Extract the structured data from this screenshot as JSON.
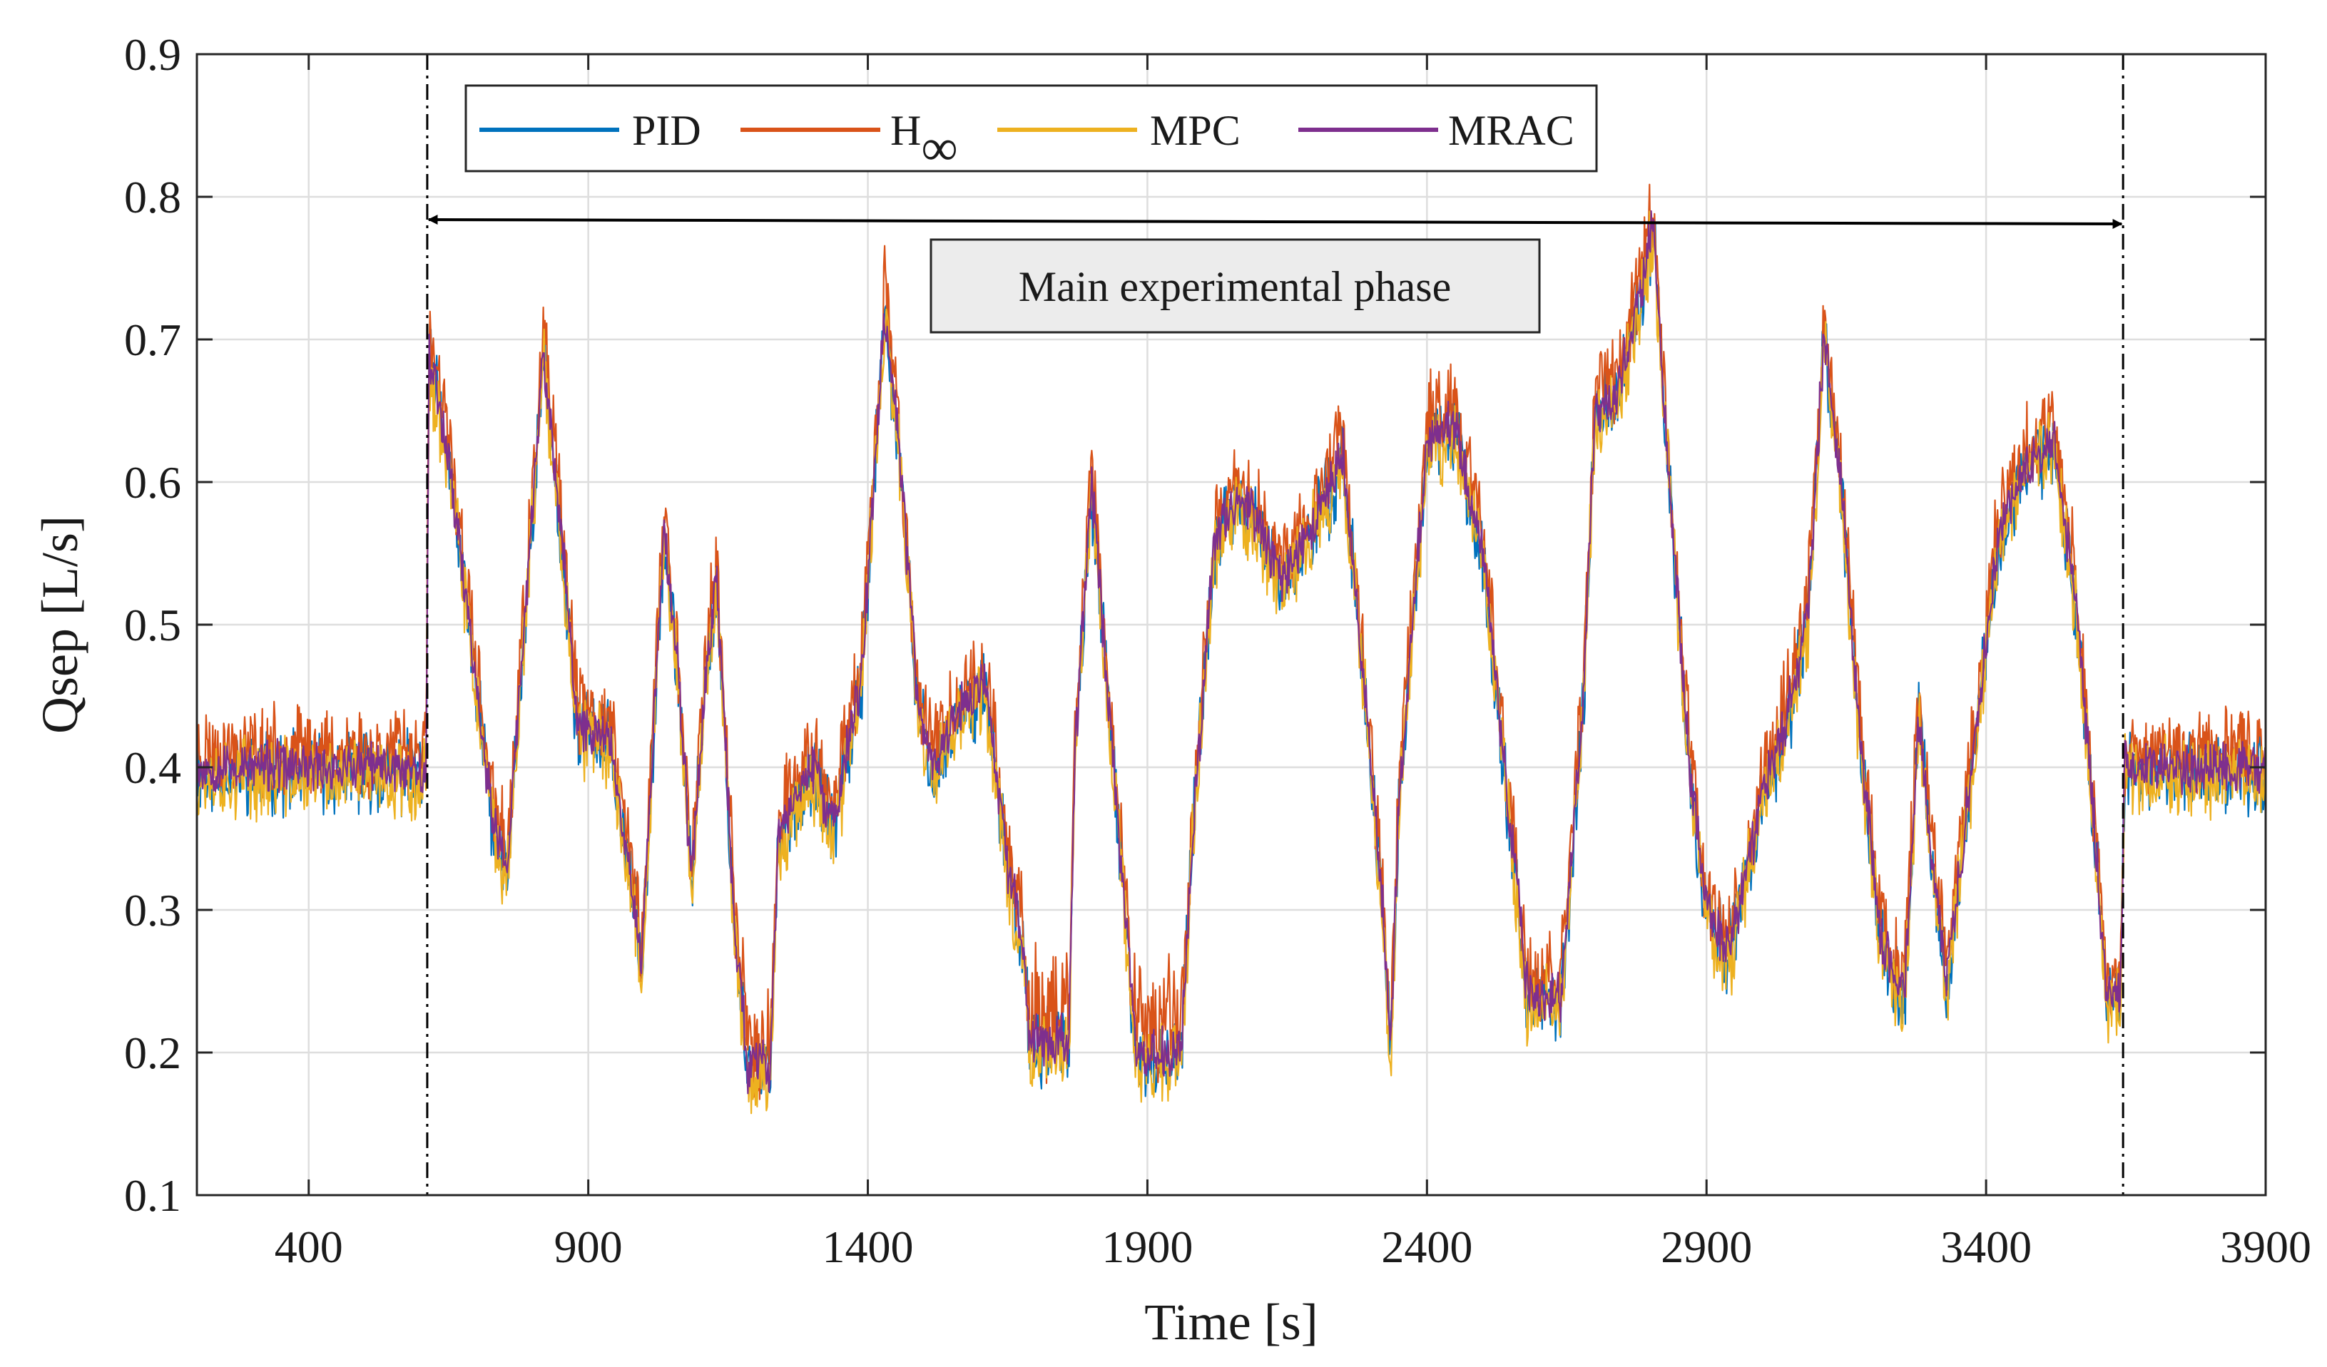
{
  "chart_data": {
    "type": "line",
    "title": "",
    "xlabel": "Time [s]",
    "ylabel": "Qsep [L/s]",
    "xlim": [
      200,
      3900
    ],
    "ylim": [
      0.1,
      0.9
    ],
    "xticks": [
      400,
      900,
      1400,
      1900,
      2400,
      2900,
      3400,
      3900
    ],
    "yticks": [
      0.1,
      0.2,
      0.3,
      0.4,
      0.5,
      0.6,
      0.7,
      0.8,
      0.9
    ],
    "xtick_labels": [
      "400",
      "900",
      "1400",
      "1900",
      "2400",
      "2900",
      "3400",
      "3900"
    ],
    "ytick_labels": [
      "0.1",
      "0.2",
      "0.3",
      "0.4",
      "0.5",
      "0.6",
      "0.7",
      "0.8",
      "0.9"
    ],
    "grid": true,
    "legend_position": "top-left",
    "phase_bounds": [
      612,
      3645
    ],
    "annotation": "Main experimental phase",
    "profile": [
      [
        200,
        0.4
      ],
      [
        610,
        0.4
      ],
      [
        615,
        0.69
      ],
      [
        650,
        0.62
      ],
      [
        730,
        0.36
      ],
      [
        755,
        0.33
      ],
      [
        820,
        0.69
      ],
      [
        855,
        0.55
      ],
      [
        880,
        0.43
      ],
      [
        940,
        0.42
      ],
      [
        985,
        0.3
      ],
      [
        995,
        0.26
      ],
      [
        1035,
        0.57
      ],
      [
        1060,
        0.47
      ],
      [
        1085,
        0.32
      ],
      [
        1110,
        0.47
      ],
      [
        1130,
        0.53
      ],
      [
        1160,
        0.3
      ],
      [
        1185,
        0.19
      ],
      [
        1200,
        0.19
      ],
      [
        1225,
        0.19
      ],
      [
        1240,
        0.35
      ],
      [
        1270,
        0.38
      ],
      [
        1300,
        0.4
      ],
      [
        1340,
        0.36
      ],
      [
        1390,
        0.47
      ],
      [
        1430,
        0.72
      ],
      [
        1455,
        0.63
      ],
      [
        1490,
        0.44
      ],
      [
        1520,
        0.4
      ],
      [
        1560,
        0.44
      ],
      [
        1610,
        0.46
      ],
      [
        1650,
        0.33
      ],
      [
        1680,
        0.27
      ],
      [
        1690,
        0.21
      ],
      [
        1760,
        0.21
      ],
      [
        1770,
        0.41
      ],
      [
        1800,
        0.6
      ],
      [
        1830,
        0.45
      ],
      [
        1860,
        0.3
      ],
      [
        1880,
        0.2
      ],
      [
        1960,
        0.2
      ],
      [
        1980,
        0.35
      ],
      [
        2020,
        0.56
      ],
      [
        2060,
        0.59
      ],
      [
        2100,
        0.57
      ],
      [
        2140,
        0.53
      ],
      [
        2180,
        0.56
      ],
      [
        2220,
        0.59
      ],
      [
        2250,
        0.62
      ],
      [
        2290,
        0.45
      ],
      [
        2325,
        0.28
      ],
      [
        2335,
        0.2
      ],
      [
        2350,
        0.38
      ],
      [
        2400,
        0.63
      ],
      [
        2450,
        0.64
      ],
      [
        2500,
        0.55
      ],
      [
        2560,
        0.32
      ],
      [
        2580,
        0.24
      ],
      [
        2640,
        0.24
      ],
      [
        2680,
        0.45
      ],
      [
        2700,
        0.65
      ],
      [
        2740,
        0.66
      ],
      [
        2780,
        0.73
      ],
      [
        2805,
        0.78
      ],
      [
        2830,
        0.62
      ],
      [
        2870,
        0.4
      ],
      [
        2900,
        0.3
      ],
      [
        2940,
        0.27
      ],
      [
        3000,
        0.38
      ],
      [
        3040,
        0.43
      ],
      [
        3080,
        0.5
      ],
      [
        3110,
        0.7
      ],
      [
        3140,
        0.6
      ],
      [
        3175,
        0.42
      ],
      [
        3210,
        0.29
      ],
      [
        3235,
        0.25
      ],
      [
        3255,
        0.25
      ],
      [
        3280,
        0.44
      ],
      [
        3305,
        0.33
      ],
      [
        3330,
        0.25
      ],
      [
        3380,
        0.42
      ],
      [
        3420,
        0.56
      ],
      [
        3470,
        0.61
      ],
      [
        3520,
        0.63
      ],
      [
        3560,
        0.52
      ],
      [
        3600,
        0.33
      ],
      [
        3615,
        0.24
      ],
      [
        3640,
        0.24
      ],
      [
        3648,
        0.4
      ],
      [
        3900,
        0.4
      ]
    ],
    "series": [
      {
        "name": "PID",
        "color": "#0072BD",
        "noise": 0.022,
        "offset": -0.004,
        "seed": 11
      },
      {
        "name": "H∞",
        "color": "#D95319",
        "noise": 0.024,
        "offset": 0.012,
        "seed": 23
      },
      {
        "name": "MPC",
        "color": "#EDB120",
        "noise": 0.022,
        "offset": -0.008,
        "seed": 37
      },
      {
        "name": "MRAC",
        "color": "#7E2F8E",
        "noise": 0.014,
        "offset": 0.0,
        "seed": 53
      }
    ]
  },
  "legend": {
    "items": [
      {
        "label": "PID"
      },
      {
        "label": "H",
        "subscript": "∞"
      },
      {
        "label": "MPC"
      },
      {
        "label": "MRAC"
      }
    ]
  }
}
